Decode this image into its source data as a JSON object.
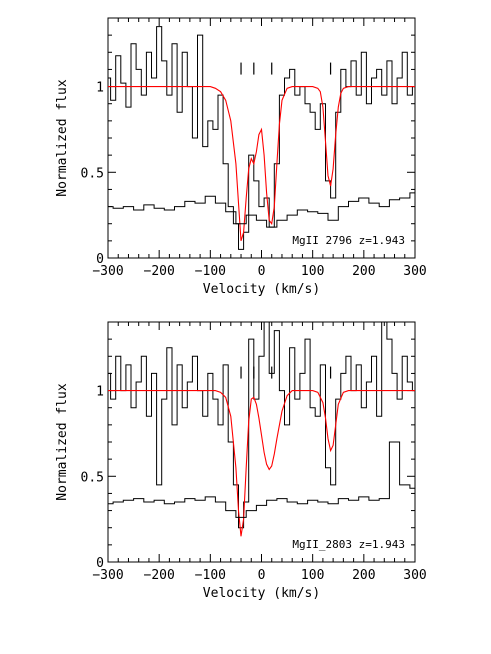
{
  "chart_data": [
    {
      "type": "line",
      "xlabel": "Velocity (km/s)",
      "ylabel": "Normalized flux",
      "annotation": "MgII 2796 z=1.943",
      "xlim": [
        -300,
        300
      ],
      "ylim": [
        0,
        1.4
      ],
      "xticks": [
        -300,
        -200,
        -100,
        0,
        100,
        200,
        300
      ],
      "yticks": [
        0,
        0.5,
        1
      ],
      "component_marks": [
        -40,
        -15,
        20,
        135
      ],
      "colors": {
        "data": "#000000",
        "fit": "#ff0000",
        "error": "#000000"
      },
      "series": [
        {
          "style": "step",
          "x": [
            -300,
            -290,
            -280,
            -270,
            -260,
            -250,
            -240,
            -230,
            -220,
            -210,
            -200,
            -190,
            -180,
            -170,
            -160,
            -150,
            -140,
            -130,
            -120,
            -110,
            -100,
            -90,
            -80,
            -70,
            -60,
            -50,
            -40,
            -30,
            -20,
            -10,
            0,
            10,
            20,
            30,
            40,
            50,
            60,
            70,
            80,
            90,
            100,
            110,
            120,
            130,
            140,
            150,
            160,
            170,
            180,
            190,
            200,
            210,
            220,
            230,
            240,
            250,
            260,
            270,
            280,
            290,
            300
          ],
          "y": [
            1.05,
            0.92,
            1.18,
            1.02,
            0.88,
            1.25,
            1.1,
            0.95,
            1.2,
            1.05,
            1.35,
            1.15,
            0.95,
            1.25,
            0.85,
            1.2,
            1.0,
            0.7,
            1.3,
            0.65,
            0.8,
            0.75,
            0.95,
            0.55,
            0.3,
            0.2,
            0.05,
            0.15,
            0.6,
            0.45,
            0.3,
            0.35,
            0.18,
            0.55,
            0.95,
            1.05,
            1.1,
            0.95,
            1.0,
            0.9,
            0.85,
            0.75,
            0.9,
            0.45,
            0.35,
            0.85,
            1.1,
            1.0,
            1.15,
            0.95,
            1.2,
            0.9,
            1.05,
            1.1,
            0.95,
            1.15,
            0.9,
            1.05,
            1.2,
            0.95,
            1.0
          ]
        },
        {
          "style": "smooth",
          "x": [
            -300,
            -120,
            -100,
            -90,
            -80,
            -70,
            -60,
            -50,
            -40,
            -35,
            -30,
            -25,
            -20,
            -15,
            -10,
            -5,
            0,
            5,
            10,
            15,
            20,
            25,
            30,
            35,
            40,
            50,
            60,
            80,
            100,
            110,
            115,
            120,
            125,
            130,
            135,
            140,
            145,
            150,
            155,
            160,
            170,
            180,
            300
          ],
          "y": [
            1,
            1,
            1,
            0.99,
            0.97,
            0.92,
            0.8,
            0.55,
            0.1,
            0.15,
            0.35,
            0.52,
            0.58,
            0.55,
            0.62,
            0.72,
            0.75,
            0.6,
            0.38,
            0.22,
            0.2,
            0.3,
            0.55,
            0.78,
            0.92,
            0.99,
            1,
            1,
            1,
            0.99,
            0.97,
            0.88,
            0.68,
            0.48,
            0.42,
            0.52,
            0.72,
            0.88,
            0.96,
            0.99,
            1,
            1,
            1
          ]
        },
        {
          "style": "step",
          "x": [
            -300,
            -280,
            -260,
            -240,
            -220,
            -200,
            -180,
            -160,
            -140,
            -120,
            -100,
            -80,
            -60,
            -40,
            -20,
            0,
            20,
            40,
            60,
            80,
            100,
            120,
            140,
            160,
            180,
            200,
            220,
            240,
            260,
            280,
            300
          ],
          "y": [
            0.3,
            0.29,
            0.3,
            0.28,
            0.31,
            0.29,
            0.28,
            0.3,
            0.33,
            0.32,
            0.36,
            0.32,
            0.27,
            0.2,
            0.25,
            0.22,
            0.18,
            0.22,
            0.25,
            0.28,
            0.27,
            0.26,
            0.22,
            0.3,
            0.33,
            0.35,
            0.32,
            0.3,
            0.34,
            0.35,
            0.38
          ]
        }
      ]
    },
    {
      "type": "line",
      "xlabel": "Velocity (km/s)",
      "ylabel": "Normalized flux",
      "annotation": "MgII_2803 z=1.943",
      "xlim": [
        -300,
        300
      ],
      "ylim": [
        0,
        1.4
      ],
      "xticks": [
        -300,
        -200,
        -100,
        0,
        100,
        200,
        300
      ],
      "yticks": [
        0,
        0.5,
        1
      ],
      "component_marks": [
        -40,
        -15,
        20,
        135
      ],
      "colors": {
        "data": "#000000",
        "fit": "#ff0000",
        "error": "#000000"
      },
      "series": [
        {
          "style": "step",
          "x": [
            -300,
            -290,
            -280,
            -270,
            -260,
            -250,
            -240,
            -230,
            -220,
            -210,
            -200,
            -190,
            -180,
            -170,
            -160,
            -150,
            -140,
            -130,
            -120,
            -110,
            -100,
            -90,
            -80,
            -70,
            -60,
            -50,
            -40,
            -30,
            -20,
            -10,
            0,
            10,
            20,
            30,
            40,
            50,
            60,
            70,
            80,
            90,
            100,
            110,
            120,
            130,
            140,
            150,
            160,
            170,
            180,
            190,
            200,
            210,
            220,
            230,
            240,
            250,
            260,
            270,
            280,
            290,
            300
          ],
          "y": [
            1.1,
            0.95,
            1.2,
            1.0,
            1.15,
            0.9,
            1.05,
            1.2,
            0.85,
            1.1,
            0.45,
            0.95,
            1.25,
            0.8,
            1.15,
            0.9,
            1.05,
            1.2,
            1.0,
            0.85,
            1.1,
            0.95,
            0.8,
            1.15,
            0.7,
            0.45,
            0.2,
            0.35,
            1.3,
            0.95,
            1.2,
            1.4,
            1.1,
            1.35,
            1.0,
            0.8,
            1.25,
            0.95,
            1.1,
            1.3,
            0.9,
            0.85,
            1.15,
            0.55,
            0.45,
            0.95,
            1.1,
            1.2,
            1.0,
            1.15,
            0.9,
            1.05,
            1.2,
            0.85,
            1.4,
            1.3,
            1.1,
            0.95,
            1.2,
            1.05,
            1.0
          ]
        },
        {
          "style": "smooth",
          "x": [
            -300,
            -90,
            -80,
            -70,
            -60,
            -50,
            -45,
            -40,
            -35,
            -30,
            -25,
            -20,
            -15,
            -10,
            -5,
            0,
            5,
            10,
            15,
            20,
            25,
            30,
            40,
            50,
            60,
            80,
            100,
            110,
            120,
            125,
            130,
            135,
            140,
            145,
            150,
            160,
            170,
            300
          ],
          "y": [
            1,
            1,
            0.99,
            0.96,
            0.85,
            0.55,
            0.3,
            0.15,
            0.25,
            0.55,
            0.82,
            0.95,
            0.96,
            0.92,
            0.84,
            0.74,
            0.64,
            0.57,
            0.54,
            0.56,
            0.63,
            0.72,
            0.88,
            0.97,
            1,
            1,
            1,
            0.99,
            0.93,
            0.84,
            0.72,
            0.65,
            0.68,
            0.8,
            0.92,
            0.99,
            1,
            1
          ]
        },
        {
          "style": "step",
          "x": [
            -300,
            -280,
            -260,
            -240,
            -220,
            -200,
            -180,
            -160,
            -140,
            -120,
            -100,
            -80,
            -60,
            -40,
            -20,
            0,
            20,
            40,
            60,
            80,
            100,
            120,
            140,
            160,
            180,
            200,
            220,
            240,
            260,
            280,
            300
          ],
          "y": [
            0.34,
            0.35,
            0.36,
            0.37,
            0.35,
            0.36,
            0.34,
            0.35,
            0.37,
            0.36,
            0.38,
            0.35,
            0.3,
            0.26,
            0.3,
            0.33,
            0.36,
            0.37,
            0.35,
            0.34,
            0.36,
            0.35,
            0.34,
            0.37,
            0.36,
            0.38,
            0.36,
            0.37,
            0.7,
            0.45,
            0.43
          ]
        }
      ]
    }
  ]
}
